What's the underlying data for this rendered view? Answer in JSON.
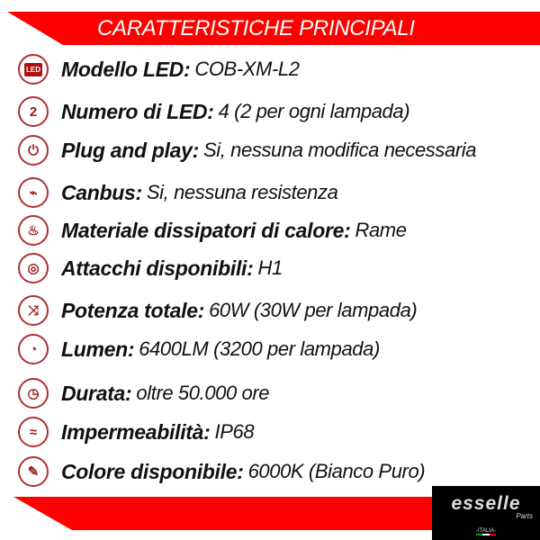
{
  "header": {
    "title": "CARATTERISTICHE PRINCIPALI"
  },
  "colors": {
    "accent": "#ff0000",
    "icon": "#b03030"
  },
  "features": [
    {
      "icon": "led-icon",
      "icon_text": "LED",
      "label": "Modello LED:",
      "value": "COB-XM-L2"
    },
    {
      "icon": "number-two-icon",
      "icon_text": "2",
      "label": "Numero di LED:",
      "value": "4 (2 per ogni lampada)"
    },
    {
      "icon": "plug-icon",
      "icon_text": "⏻",
      "label": "Plug and play:",
      "value": "Si, nessuna modifica necessaria"
    },
    {
      "icon": "resistor-icon",
      "icon_text": "⌁",
      "label": "Canbus:",
      "value": "Si, nessuna resistenza"
    },
    {
      "icon": "heat-sink-icon",
      "icon_text": "♨",
      "label": "Materiale dissipatori di calore:",
      "value": "Rame"
    },
    {
      "icon": "socket-icon",
      "icon_text": "◎",
      "label": "Attacchi disponibili:",
      "value": "H1"
    },
    {
      "icon": "shuffle-icon",
      "icon_text": "⤨",
      "label": "Potenza totale:",
      "value": "60W (30W per lampada)"
    },
    {
      "icon": "gauge-icon",
      "icon_text": "◔",
      "label": "Lumen:",
      "value": "6400LM (3200 per lampada)"
    },
    {
      "icon": "clock-icon",
      "icon_text": "◷",
      "label": "Durata:",
      "value": "oltre 50.000 ore"
    },
    {
      "icon": "water-icon",
      "icon_text": "≈",
      "label": "Impermeabilità:",
      "value": "IP68"
    },
    {
      "icon": "brush-icon",
      "icon_text": "✎",
      "label": "Colore disponibile:",
      "value": "6000K (Bianco Puro)"
    }
  ],
  "logo": {
    "name": "esselle",
    "sub": "Parts",
    "country": "-ITALIA-"
  }
}
